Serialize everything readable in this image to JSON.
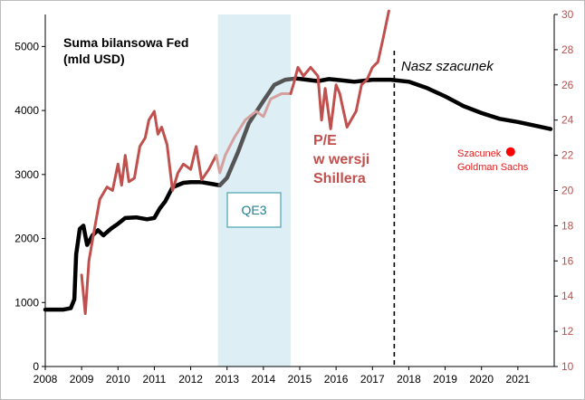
{
  "chart_data": {
    "type": "line",
    "title_lines": [
      "Suma bilansowa Fed",
      "(mld USD)"
    ],
    "pe_label_lines": [
      "P/E",
      "w wersji",
      "Shillera"
    ],
    "estimate_label": "Nasz szacunek",
    "gs_label_lines": [
      "Szacunek",
      "Goldman Sachs"
    ],
    "qe3_label": "QE3",
    "xlim": [
      2008,
      2022
    ],
    "x_ticks": [
      2008,
      2009,
      2010,
      2011,
      2012,
      2013,
      2014,
      2015,
      2016,
      2017,
      2018,
      2019,
      2020,
      2021
    ],
    "ylim_left": [
      0,
      5500
    ],
    "y_ticks_left": [
      0,
      1000,
      2000,
      3000,
      4000,
      5000
    ],
    "ylim_right": [
      10,
      30
    ],
    "y_ticks_right": [
      10,
      12,
      14,
      16,
      18,
      20,
      22,
      24,
      26,
      28,
      30
    ],
    "qe3_period": [
      2012.75,
      2014.75
    ],
    "estimate_start": 2017.6,
    "colors": {
      "fed": "#000000",
      "fed_qe3": "#555555",
      "pe": "#c0504d",
      "pe_qe3": "#d4a19e",
      "qe3_band": "#ddeef5",
      "qe3_box": "#4aa3b0",
      "gs_point": "#ff0000"
    },
    "series": [
      {
        "name": "Suma bilansowa Fed",
        "axis": "left",
        "x": [
          2008.0,
          2008.5,
          2008.7,
          2008.8,
          2008.85,
          2008.95,
          2009.05,
          2009.15,
          2009.3,
          2009.45,
          2009.6,
          2009.8,
          2010.0,
          2010.2,
          2010.5,
          2010.8,
          2011.0,
          2011.15,
          2011.3,
          2011.5,
          2011.8,
          2012.0,
          2012.3,
          2012.6,
          2012.8,
          2013.0,
          2013.3,
          2013.6,
          2014.0,
          2014.3,
          2014.6,
          2014.9,
          2015.2,
          2015.5,
          2015.8,
          2016.0,
          2016.5,
          2017.0,
          2017.5,
          2018.0,
          2018.5,
          2019.0,
          2019.5,
          2020.0,
          2020.5,
          2021.0,
          2021.5,
          2021.9
        ],
        "y": [
          890,
          890,
          910,
          1050,
          1750,
          2150,
          2200,
          1900,
          2050,
          2130,
          2050,
          2150,
          2230,
          2320,
          2330,
          2300,
          2320,
          2470,
          2580,
          2800,
          2870,
          2880,
          2880,
          2850,
          2830,
          2950,
          3350,
          3800,
          4150,
          4400,
          4480,
          4500,
          4480,
          4460,
          4490,
          4480,
          4450,
          4480,
          4480,
          4450,
          4350,
          4220,
          4070,
          3960,
          3870,
          3820,
          3760,
          3710
        ]
      },
      {
        "name": "P/E w wersji Shillera",
        "axis": "right",
        "x": [
          2009.0,
          2009.1,
          2009.2,
          2009.3,
          2009.5,
          2009.7,
          2009.85,
          2010.0,
          2010.1,
          2010.2,
          2010.3,
          2010.45,
          2010.6,
          2010.75,
          2010.85,
          2011.0,
          2011.1,
          2011.2,
          2011.35,
          2011.5,
          2011.65,
          2011.8,
          2012.0,
          2012.15,
          2012.3,
          2012.5,
          2012.7,
          2012.8,
          2012.95,
          2013.2,
          2013.5,
          2013.8,
          2014.0,
          2014.2,
          2014.5,
          2014.75,
          2014.85,
          2014.95,
          2015.1,
          2015.3,
          2015.5,
          2015.6,
          2015.7,
          2015.85,
          2016.0,
          2016.1,
          2016.3,
          2016.55,
          2016.7,
          2016.85,
          2017.0,
          2017.15,
          2017.3,
          2017.45
        ],
        "y": [
          15.2,
          13.0,
          16.0,
          17.2,
          19.5,
          20.2,
          20.0,
          21.5,
          20.3,
          22.0,
          20.5,
          20.7,
          22.5,
          23.0,
          24.0,
          24.5,
          23.2,
          23.6,
          22.6,
          20.0,
          21.0,
          21.5,
          21.2,
          22.5,
          20.6,
          21.2,
          22.0,
          21.0,
          22.0,
          23.0,
          24.0,
          24.5,
          24.2,
          25.2,
          25.5,
          25.5,
          26.2,
          27.0,
          26.5,
          27.0,
          26.5,
          24.0,
          25.8,
          23.5,
          26.0,
          25.5,
          23.6,
          24.5,
          26.0,
          26.3,
          27.0,
          27.3,
          28.7,
          30.2
        ]
      }
    ],
    "goldman_sachs_estimate": {
      "x": 2020.8,
      "y": 22.2,
      "axis": "right"
    }
  }
}
